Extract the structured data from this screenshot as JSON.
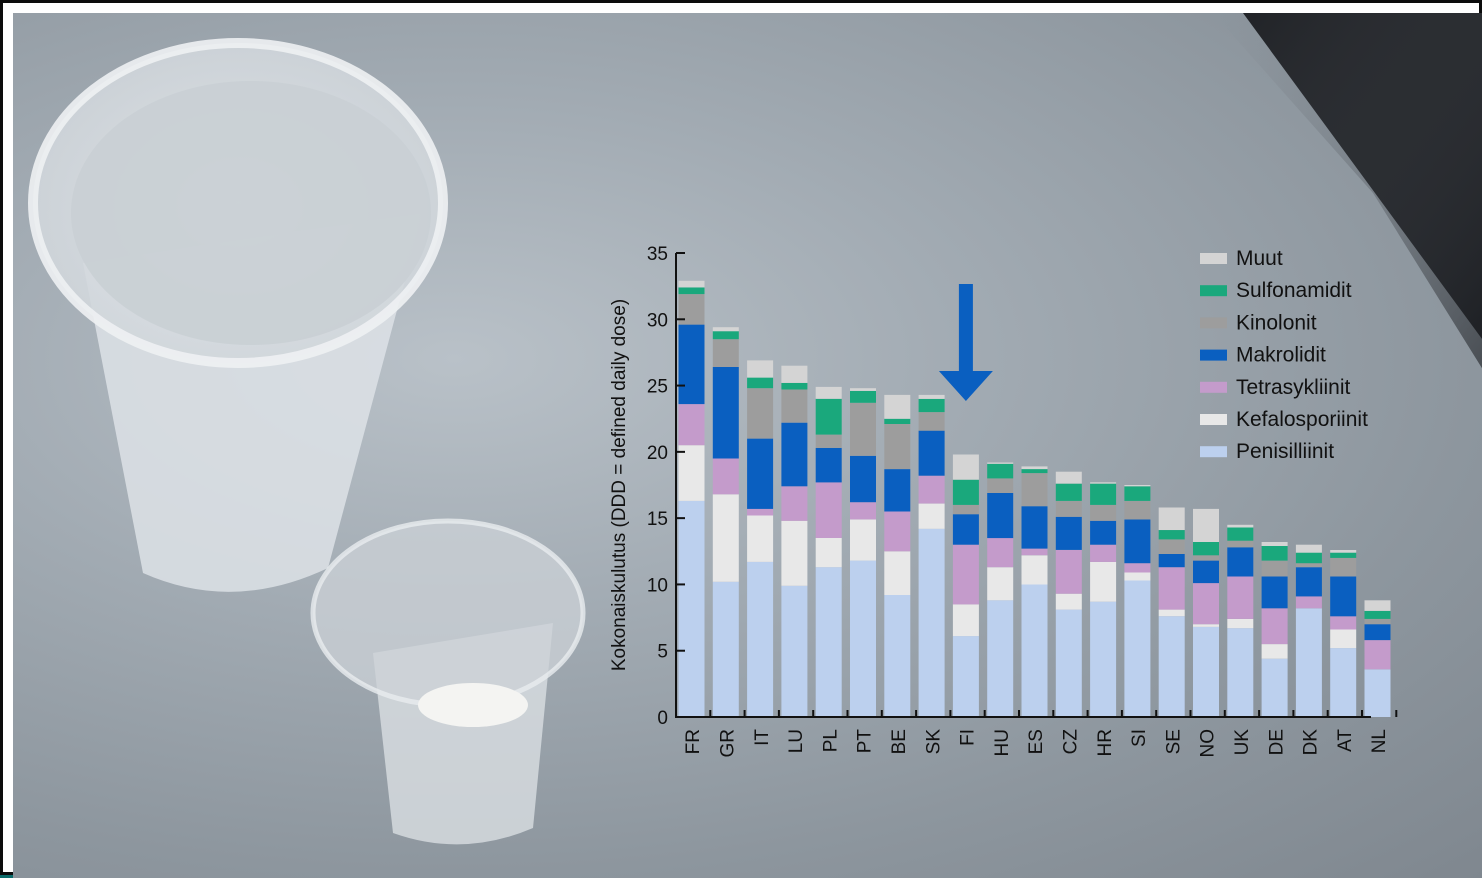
{
  "chart_data": {
    "type": "bar",
    "stacked": true,
    "ylabel": "Kokonaiskulutus (DDD = defined daily dose)",
    "ylim": [
      0,
      35
    ],
    "yticks": [
      0,
      5,
      10,
      15,
      20,
      25,
      30,
      35
    ],
    "legend_position": "top-right",
    "categories": [
      "FR",
      "GR",
      "IT",
      "LU",
      "PL",
      "PT",
      "BE",
      "SK",
      "FI",
      "HU",
      "ES",
      "CZ",
      "HR",
      "SI",
      "SE",
      "NO",
      "UK",
      "DE",
      "DK",
      "AT",
      "NL"
    ],
    "highlight": {
      "category": "FI",
      "marker": "arrow-down",
      "color": "#0a5fc0"
    },
    "series": [
      {
        "name": "Penisilliinit",
        "color": "#bcd0ee",
        "values": [
          16.3,
          10.2,
          11.7,
          9.9,
          11.3,
          11.8,
          9.2,
          14.2,
          6.1,
          8.8,
          10.0,
          8.1,
          8.7,
          10.3,
          7.6,
          6.8,
          6.7,
          4.4,
          8.2,
          5.2,
          3.6
        ]
      },
      {
        "name": "Kefalosporiinit",
        "color": "#e8e8e8",
        "values": [
          4.2,
          6.6,
          3.5,
          4.9,
          2.2,
          3.1,
          3.3,
          1.9,
          2.4,
          2.5,
          2.2,
          1.2,
          3.0,
          0.6,
          0.5,
          0.2,
          0.7,
          1.1,
          0.0,
          1.4,
          0.0
        ]
      },
      {
        "name": "Tetrasykliinit",
        "color": "#c49bcb",
        "values": [
          3.1,
          2.7,
          0.5,
          2.6,
          4.2,
          1.3,
          3.0,
          2.1,
          4.5,
          2.2,
          0.5,
          3.3,
          1.3,
          0.7,
          3.2,
          3.1,
          3.2,
          2.7,
          0.9,
          1.0,
          2.2
        ]
      },
      {
        "name": "Makrolidit",
        "color": "#0a5fc0",
        "values": [
          6.0,
          6.9,
          5.3,
          4.8,
          2.6,
          3.5,
          3.2,
          3.4,
          2.3,
          3.4,
          3.2,
          2.5,
          1.8,
          3.3,
          1.0,
          1.7,
          2.2,
          2.4,
          2.2,
          3.0,
          1.2
        ]
      },
      {
        "name": "Kinolonit",
        "color": "#9d9d9d",
        "values": [
          2.3,
          2.1,
          3.8,
          2.5,
          1.0,
          4.0,
          3.4,
          1.4,
          0.7,
          1.1,
          2.5,
          1.2,
          1.2,
          1.4,
          1.1,
          0.4,
          0.5,
          1.2,
          0.3,
          1.4,
          0.4
        ]
      },
      {
        "name": "Sulfonamidit",
        "color": "#1aa87c",
        "values": [
          0.5,
          0.6,
          0.8,
          0.5,
          2.7,
          0.9,
          0.4,
          1.0,
          1.9,
          1.1,
          0.3,
          1.3,
          1.6,
          1.1,
          0.7,
          1.0,
          1.0,
          1.1,
          0.8,
          0.4,
          0.6
        ]
      },
      {
        "name": "Muut",
        "color": "#d4d4d4",
        "values": [
          0.5,
          0.3,
          1.3,
          1.3,
          0.9,
          0.2,
          1.8,
          0.3,
          1.9,
          0.1,
          0.2,
          0.9,
          0.1,
          0.1,
          1.7,
          2.5,
          0.2,
          0.3,
          0.6,
          0.2,
          0.8
        ]
      }
    ]
  }
}
